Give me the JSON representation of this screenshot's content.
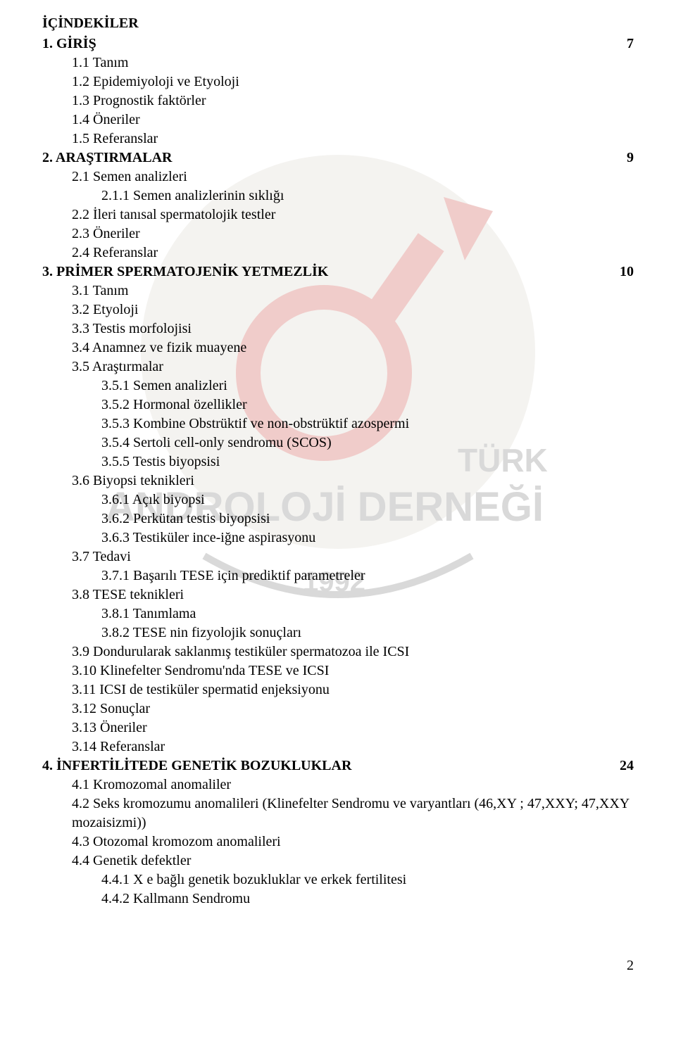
{
  "colors": {
    "text": "#000000",
    "background": "#ffffff",
    "watermark_red": "#c53a2f",
    "watermark_gray": "#6a6a6a",
    "watermark_bg": "#d6d0c6"
  },
  "typography": {
    "font_family": "Times New Roman",
    "body_fontsize_pt": 14,
    "title_fontsize_pt": 14,
    "bold_weight": 700
  },
  "title": "İÇİNDEKİLER",
  "sections": [
    {
      "num": "1.",
      "label": "GİRİŞ",
      "page": "7",
      "bold": true,
      "indent": 0
    },
    {
      "num": "1.1",
      "label": "Tanım",
      "indent": 1
    },
    {
      "num": "1.2",
      "label": "Epidemiyoloji ve Etyoloji",
      "indent": 1
    },
    {
      "num": "1.3",
      "label": "Prognostik faktörler",
      "indent": 1
    },
    {
      "num": "1.4",
      "label": "Öneriler",
      "indent": 1
    },
    {
      "num": "1.5",
      "label": "Referanslar",
      "indent": 1
    },
    {
      "num": "2.",
      "label": "ARAŞTIRMALAR",
      "page": "9",
      "bold": true,
      "indent": 0
    },
    {
      "num": "2.1",
      "label": "Semen  analizleri",
      "indent": 1
    },
    {
      "num": "2.1.1",
      "label": "Semen analizlerinin sıklığı",
      "indent": 2,
      "nolabelnum": true
    },
    {
      "num": "2.2",
      "label": "İleri tanısal spermatolojik testler",
      "indent": 1
    },
    {
      "num": "2.3",
      "label": "Öneriler",
      "indent": 1
    },
    {
      "num": "2.4",
      "label": "Referanslar",
      "indent": 1
    },
    {
      "num": "3.",
      "label": "PRİMER SPERMATOJENİK YETMEZLİK",
      "page": "10",
      "bold": true,
      "indent": 0
    },
    {
      "num": "3.1",
      "label": "Tanım",
      "indent": 1
    },
    {
      "num": "3.2",
      "label": "Etyoloji",
      "indent": 1
    },
    {
      "num": "3.3",
      "label": "Testis morfolojisi",
      "indent": 1
    },
    {
      "num": "3.4",
      "label": "Anamnez ve fizik muayene",
      "indent": 1
    },
    {
      "num": "3.5",
      "label": "Araştırmalar",
      "indent": 1
    },
    {
      "num": "3.5.1",
      "label": "Semen  analizleri",
      "indent": 2
    },
    {
      "num": "3.5.2",
      "label": "Hormonal özellikler",
      "indent": 2
    },
    {
      "num": "3.5.3",
      "label": "Kombine Obstrüktif ve non-obstrüktif azospermi",
      "indent": 2
    },
    {
      "num": "3.5.4",
      "label": "Sertoli cell-only sendromu (SCOS)",
      "indent": 2
    },
    {
      "num": "3.5.5",
      "label": "Testis biyopsisi",
      "indent": 2
    },
    {
      "num": "3.6",
      "label": "Biyopsi teknikleri",
      "indent": 1
    },
    {
      "num": "3.6.1",
      "label": "Açık biyopsi",
      "indent": 2
    },
    {
      "num": "3.6.2",
      "label": "Perkütan testis biyopsisi",
      "indent": 2
    },
    {
      "num": "3.6.3",
      "label": "Testiküler ince-iğne aspirasyonu",
      "indent": 2
    },
    {
      "num": "3.7",
      "label": "Tedavi",
      "indent": 1
    },
    {
      "num": "3.7.1",
      "label": "Başarılı TESE için prediktif parametreler",
      "indent": 2
    },
    {
      "num": "3.8",
      "label": "TESE teknikleri",
      "indent": 1
    },
    {
      "num": "3.8.1",
      "label": "Tanımlama",
      "indent": 2
    },
    {
      "num": "3.8.2",
      "label": "TESE nin fizyolojik sonuçları",
      "indent": 2
    },
    {
      "num": "3.9",
      "label": "Dondurularak saklanmış testiküler spermatozoa ile ICSI",
      "indent": 1
    },
    {
      "num": "3.10",
      "label": "Klinefelter Sendromu'nda TESE ve ICSI",
      "indent": 1
    },
    {
      "num": "3.11",
      "label": "ICSI de testiküler spermatid enjeksiyonu",
      "indent": 1
    },
    {
      "num": "3.12",
      "label": "Sonuçlar",
      "indent": 1
    },
    {
      "num": "3.13",
      "label": "Öneriler",
      "indent": 1
    },
    {
      "num": "3.14",
      "label": "Referanslar",
      "indent": 1
    },
    {
      "num": "4.",
      "label": "İNFERTİLİTEDE GENETİK BOZUKLUKLAR",
      "page": "24",
      "bold": true,
      "indent": 0
    },
    {
      "num": "4.1",
      "label": "Kromozomal anomaliler",
      "indent": 1
    },
    {
      "num": "4.2",
      "label": "Seks kromozumu anomalileri (Klinefelter Sendromu ve varyantları (46,XY ; 47,XXY; 47,XXY mozaisizmi))",
      "indent": 1
    },
    {
      "num": "4.3",
      "label": "Otozomal kromozom anomalileri",
      "indent": 1
    },
    {
      "num": "4.4",
      "label": "Genetik defektler",
      "indent": 1
    },
    {
      "num": "4.4.1",
      "label": "X e bağlı genetik bozukluklar ve erkek fertilitesi",
      "indent": 2
    },
    {
      "num": "4.4.2",
      "label": "Kallmann Sendromu",
      "indent": 2
    }
  ],
  "watermark": {
    "text_top": "TÜRK",
    "text_bottom": "ANDROLOJİ DERNEĞİ",
    "year": "1992"
  },
  "footer_page": "2"
}
